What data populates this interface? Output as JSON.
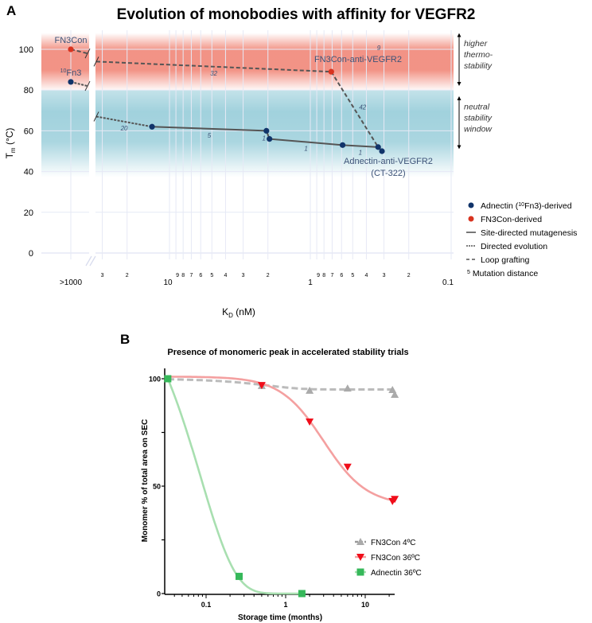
{
  "chart_data": [
    {
      "panel_label": "A",
      "type": "scatter",
      "title": "Evolution of monobodies with affinity for VEGFR2",
      "xlabel_main": "K",
      "xlabel_sub": "D",
      "xlabel_unit": " (nM)",
      "ylabel_main": "T",
      "ylabel_sub": "m",
      "ylabel_unit": " (°C)",
      "x_scale": "log-reversed",
      "xlim": [
        35,
        0.1
      ],
      "ylim": [
        0,
        105
      ],
      "x_break_label": ">1000",
      "x_major_ticks": [
        {
          "v": 10,
          "label": "10"
        },
        {
          "v": 1,
          "label": "1"
        },
        {
          "v": 0.1,
          "label": "0.1"
        }
      ],
      "x_minor_ticks": [
        {
          "v": 30,
          "label": "3"
        },
        {
          "v": 20,
          "label": "2"
        },
        {
          "v": 9,
          "label": "9"
        },
        {
          "v": 8,
          "label": "8"
        },
        {
          "v": 7,
          "label": "7"
        },
        {
          "v": 6,
          "label": "6"
        },
        {
          "v": 5,
          "label": "5"
        },
        {
          "v": 4,
          "label": "4"
        },
        {
          "v": 3,
          "label": "3"
        },
        {
          "v": 2,
          "label": "2"
        },
        {
          "v": 0.9,
          "label": "9"
        },
        {
          "v": 0.8,
          "label": "8"
        },
        {
          "v": 0.7,
          "label": "7"
        },
        {
          "v": 0.6,
          "label": "6"
        },
        {
          "v": 0.5,
          "label": "5"
        },
        {
          "v": 0.4,
          "label": "4"
        },
        {
          "v": 0.3,
          "label": "3"
        },
        {
          "v": 0.2,
          "label": "2"
        }
      ],
      "y_ticks": [
        0,
        20,
        40,
        60,
        80,
        100
      ],
      "bands": [
        {
          "name": "higher thermo-stability",
          "from": 80,
          "to": 108,
          "color": "#f08070"
        },
        {
          "name": "neutral stability window",
          "from": 45,
          "to": 80,
          "color": "#9ccfdb"
        }
      ],
      "points": [
        {
          "id": "fn3con",
          "kd": ">1000",
          "tm": 100,
          "group": "FN3Con",
          "label": "FN3Con"
        },
        {
          "id": "fn3",
          "kd": ">1000",
          "tm": 84,
          "group": "Adnectin",
          "label_sup": "10",
          "label": "Fn3"
        },
        {
          "id": "a1",
          "kd": 13.3,
          "tm": 62,
          "group": "Adnectin"
        },
        {
          "id": "a2",
          "kd": 2.05,
          "tm": 60,
          "group": "Adnectin"
        },
        {
          "id": "a3",
          "kd": 1.95,
          "tm": 56,
          "group": "Adnectin"
        },
        {
          "id": "a4",
          "kd": 0.59,
          "tm": 53,
          "group": "Adnectin"
        },
        {
          "id": "a5",
          "kd": 0.33,
          "tm": 52,
          "group": "Adnectin"
        },
        {
          "id": "a6",
          "kd": 0.31,
          "tm": 50,
          "group": "Adnectin",
          "label": "Adnectin-anti-VEGFR2",
          "label2": "(CT-322)"
        },
        {
          "id": "fv",
          "kd": 0.71,
          "tm": 89,
          "group": "FN3Con",
          "label": "FN3Con-anti-VEGFR2"
        }
      ],
      "segments": [
        {
          "from": "fn3con",
          "to": "breakL:98",
          "type": "loop"
        },
        {
          "from": "fn3",
          "to": "breakL:82",
          "type": "directed"
        },
        {
          "from": "breakR:94",
          "to": "fv",
          "type": "loop",
          "distance": "32"
        },
        {
          "from": "breakR:67",
          "to": "a1",
          "type": "directed",
          "distance": "20"
        },
        {
          "from": "a1",
          "to": "a2",
          "type": "site",
          "distance": "5"
        },
        {
          "from": "a2",
          "to": "a3",
          "type": "site",
          "distance": "1"
        },
        {
          "from": "a3",
          "to": "a4",
          "type": "site",
          "distance": "1"
        },
        {
          "from": "a4",
          "to": "a5",
          "type": "site",
          "distance": "1"
        },
        {
          "from": "a5",
          "to": "a6",
          "type": "site",
          "distance": "9"
        },
        {
          "from": "fv",
          "to": "a5",
          "type": "loop",
          "distance": "42"
        }
      ],
      "annotations": [
        {
          "lines": [
            "higher",
            "thermo-",
            "stability"
          ],
          "tm_top": 107,
          "tm_bottom": 83
        },
        {
          "lines": [
            "neutral",
            "stability",
            "window"
          ],
          "tm_top": 76,
          "tm_bottom": 52
        }
      ],
      "legend": {
        "placement": "right",
        "items": [
          {
            "kind": "dot",
            "color": "#11346a",
            "pre": "Adnectin (",
            "sup": "10",
            "post": "Fn3)-derived"
          },
          {
            "kind": "dot",
            "color": "#d8331f",
            "pre": "FN3Con-derived"
          },
          {
            "kind": "solid",
            "pre": "Site-directed mutagenesis"
          },
          {
            "kind": "dotted",
            "pre": "Directed evolution"
          },
          {
            "kind": "dashed",
            "pre": "Loop grafting"
          },
          {
            "kind": "sup",
            "sup": "5",
            "pre": "Mutation distance"
          }
        ]
      },
      "colors": {
        "adnectin": "#11346a",
        "fn3con": "#d8331f",
        "line": "#555555",
        "label": "#3d5378"
      }
    },
    {
      "panel_label": "B",
      "type": "line",
      "title": "Presence of monomeric peak in accelerated stability trials",
      "xlabel": "Storage time (months)",
      "ylabel": "Monomer % of total area on SEC",
      "x_scale": "log",
      "xlim": [
        0.03,
        25
      ],
      "ylim": [
        0,
        100
      ],
      "x_ticks": [
        {
          "v": 0.1,
          "label": "0.1"
        },
        {
          "v": 1,
          "label": "1"
        },
        {
          "v": 10,
          "label": "10"
        }
      ],
      "y_ticks": [
        {
          "v": 0,
          "label": "0"
        },
        {
          "v": 25,
          "label": ""
        },
        {
          "v": 50,
          "label": "50"
        },
        {
          "v": 75,
          "label": ""
        },
        {
          "v": 100,
          "label": "100"
        }
      ],
      "series": [
        {
          "name": "FN3Con 4ºC",
          "marker": "triangle-up",
          "color": "#aaaaaa",
          "line": "dashed",
          "x": [
            0.033,
            0.5,
            2,
            6,
            22,
            23.5
          ],
          "y": [
            100,
            96.7,
            94.5,
            95.5,
            94.8,
            92.6
          ]
        },
        {
          "name": "FN3Con 36ºC",
          "marker": "triangle-down",
          "color": "#f00d1a",
          "line": "#f4a0a0",
          "x": [
            0.033,
            0.5,
            2,
            6,
            22,
            23.5
          ],
          "y": [
            100,
            97,
            80,
            59,
            43,
            44
          ]
        },
        {
          "name": "Adnectin 36ºC",
          "marker": "square",
          "color": "#36b85a",
          "line": "#a8dfb0",
          "x": [
            0.033,
            0.26,
            1.6
          ],
          "y": [
            100,
            8,
            0
          ]
        }
      ],
      "legend": {
        "placement": "lower-right"
      }
    }
  ]
}
